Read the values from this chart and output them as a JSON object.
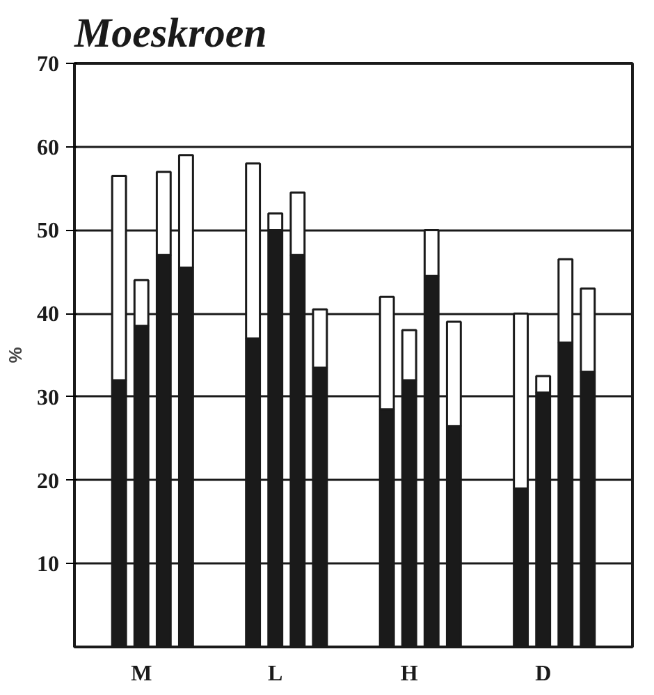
{
  "chart_data": {
    "type": "bar",
    "title": "Moeskroen",
    "ylabel": "%",
    "stacked": true,
    "categories": [
      null,
      "M",
      null,
      null,
      null,
      null,
      null,
      "L",
      null,
      null,
      null,
      null,
      null,
      "H",
      null,
      null,
      null,
      null,
      null,
      "D",
      null,
      null
    ],
    "series": [
      {
        "color": "#1a1a1a",
        "values": [
          32,
          38.5,
          47,
          45.5,
          null,
          null,
          37,
          50,
          47,
          33.5,
          null,
          null,
          28.5,
          32,
          44.5,
          26.5,
          null,
          null,
          19,
          30.5,
          36.5,
          33
        ]
      },
      {
        "color": "#ffffff",
        "values": [
          24.5,
          5.5,
          10,
          13.5,
          null,
          null,
          21,
          2,
          7.5,
          7,
          null,
          null,
          13.5,
          6,
          5.5,
          12.5,
          null,
          null,
          21,
          2,
          10,
          10
        ]
      }
    ],
    "ylim": [
      0,
      70
    ],
    "yticks": [
      10,
      20,
      30,
      40,
      50,
      60,
      70
    ],
    "grid": "y"
  }
}
